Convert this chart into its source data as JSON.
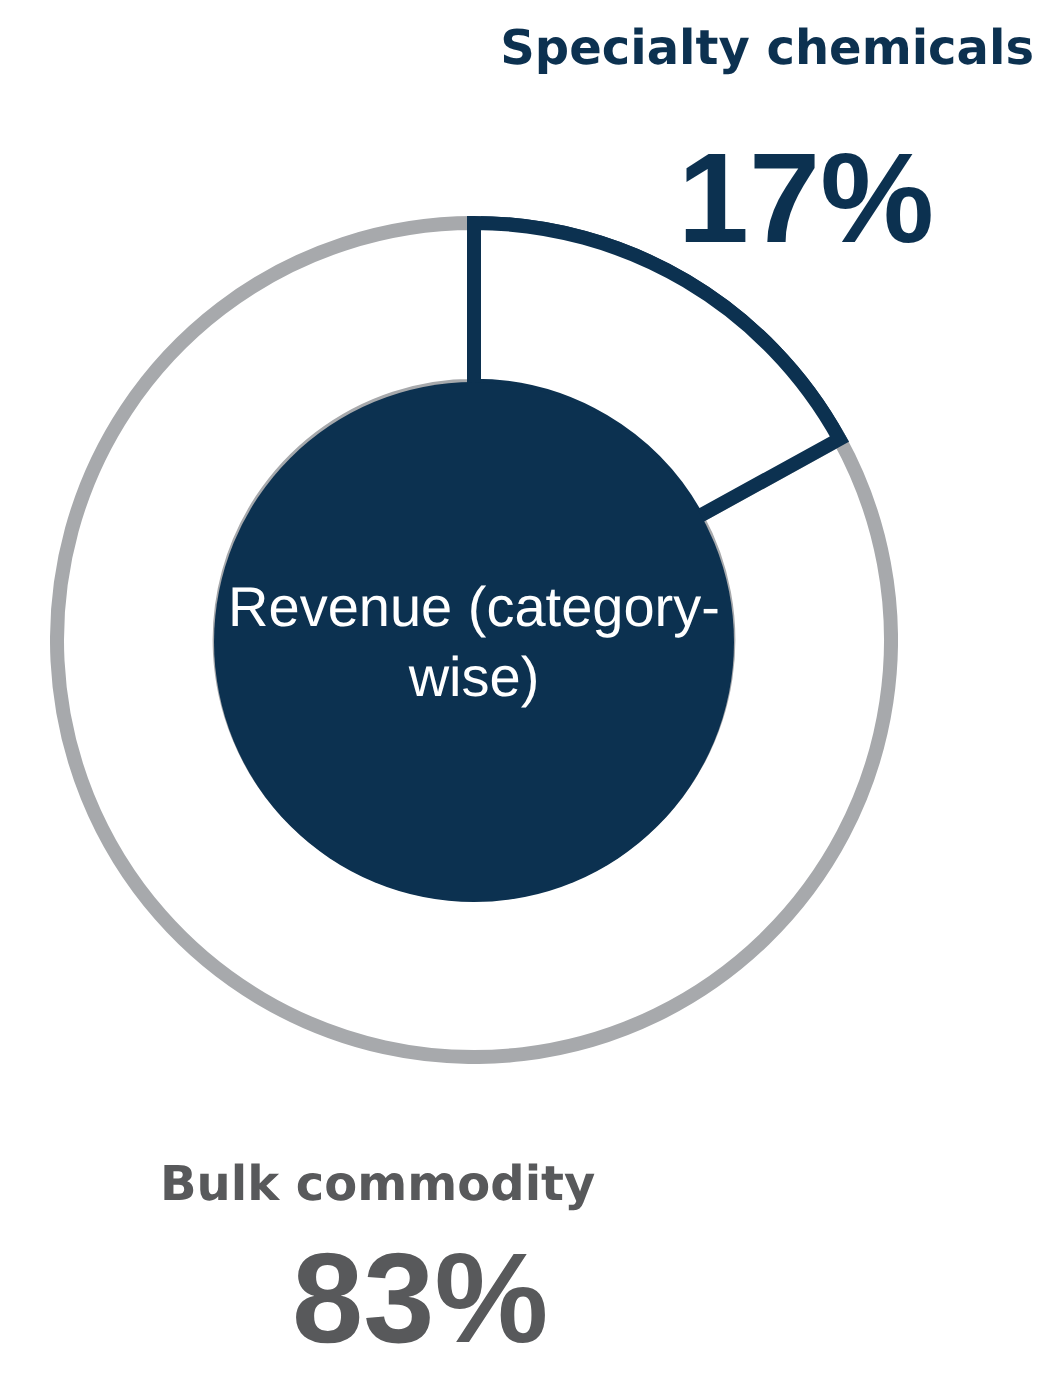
{
  "chart_data": {
    "type": "donut",
    "title": "Revenue (category-wise)",
    "categories": [
      "Specialty chemicals",
      "Bulk commodity"
    ],
    "values": [
      17,
      83
    ],
    "colors": [
      "#0c3150",
      "#a7a9ac"
    ],
    "value_labels": [
      "17%",
      "83%"
    ],
    "legend": false
  }
}
